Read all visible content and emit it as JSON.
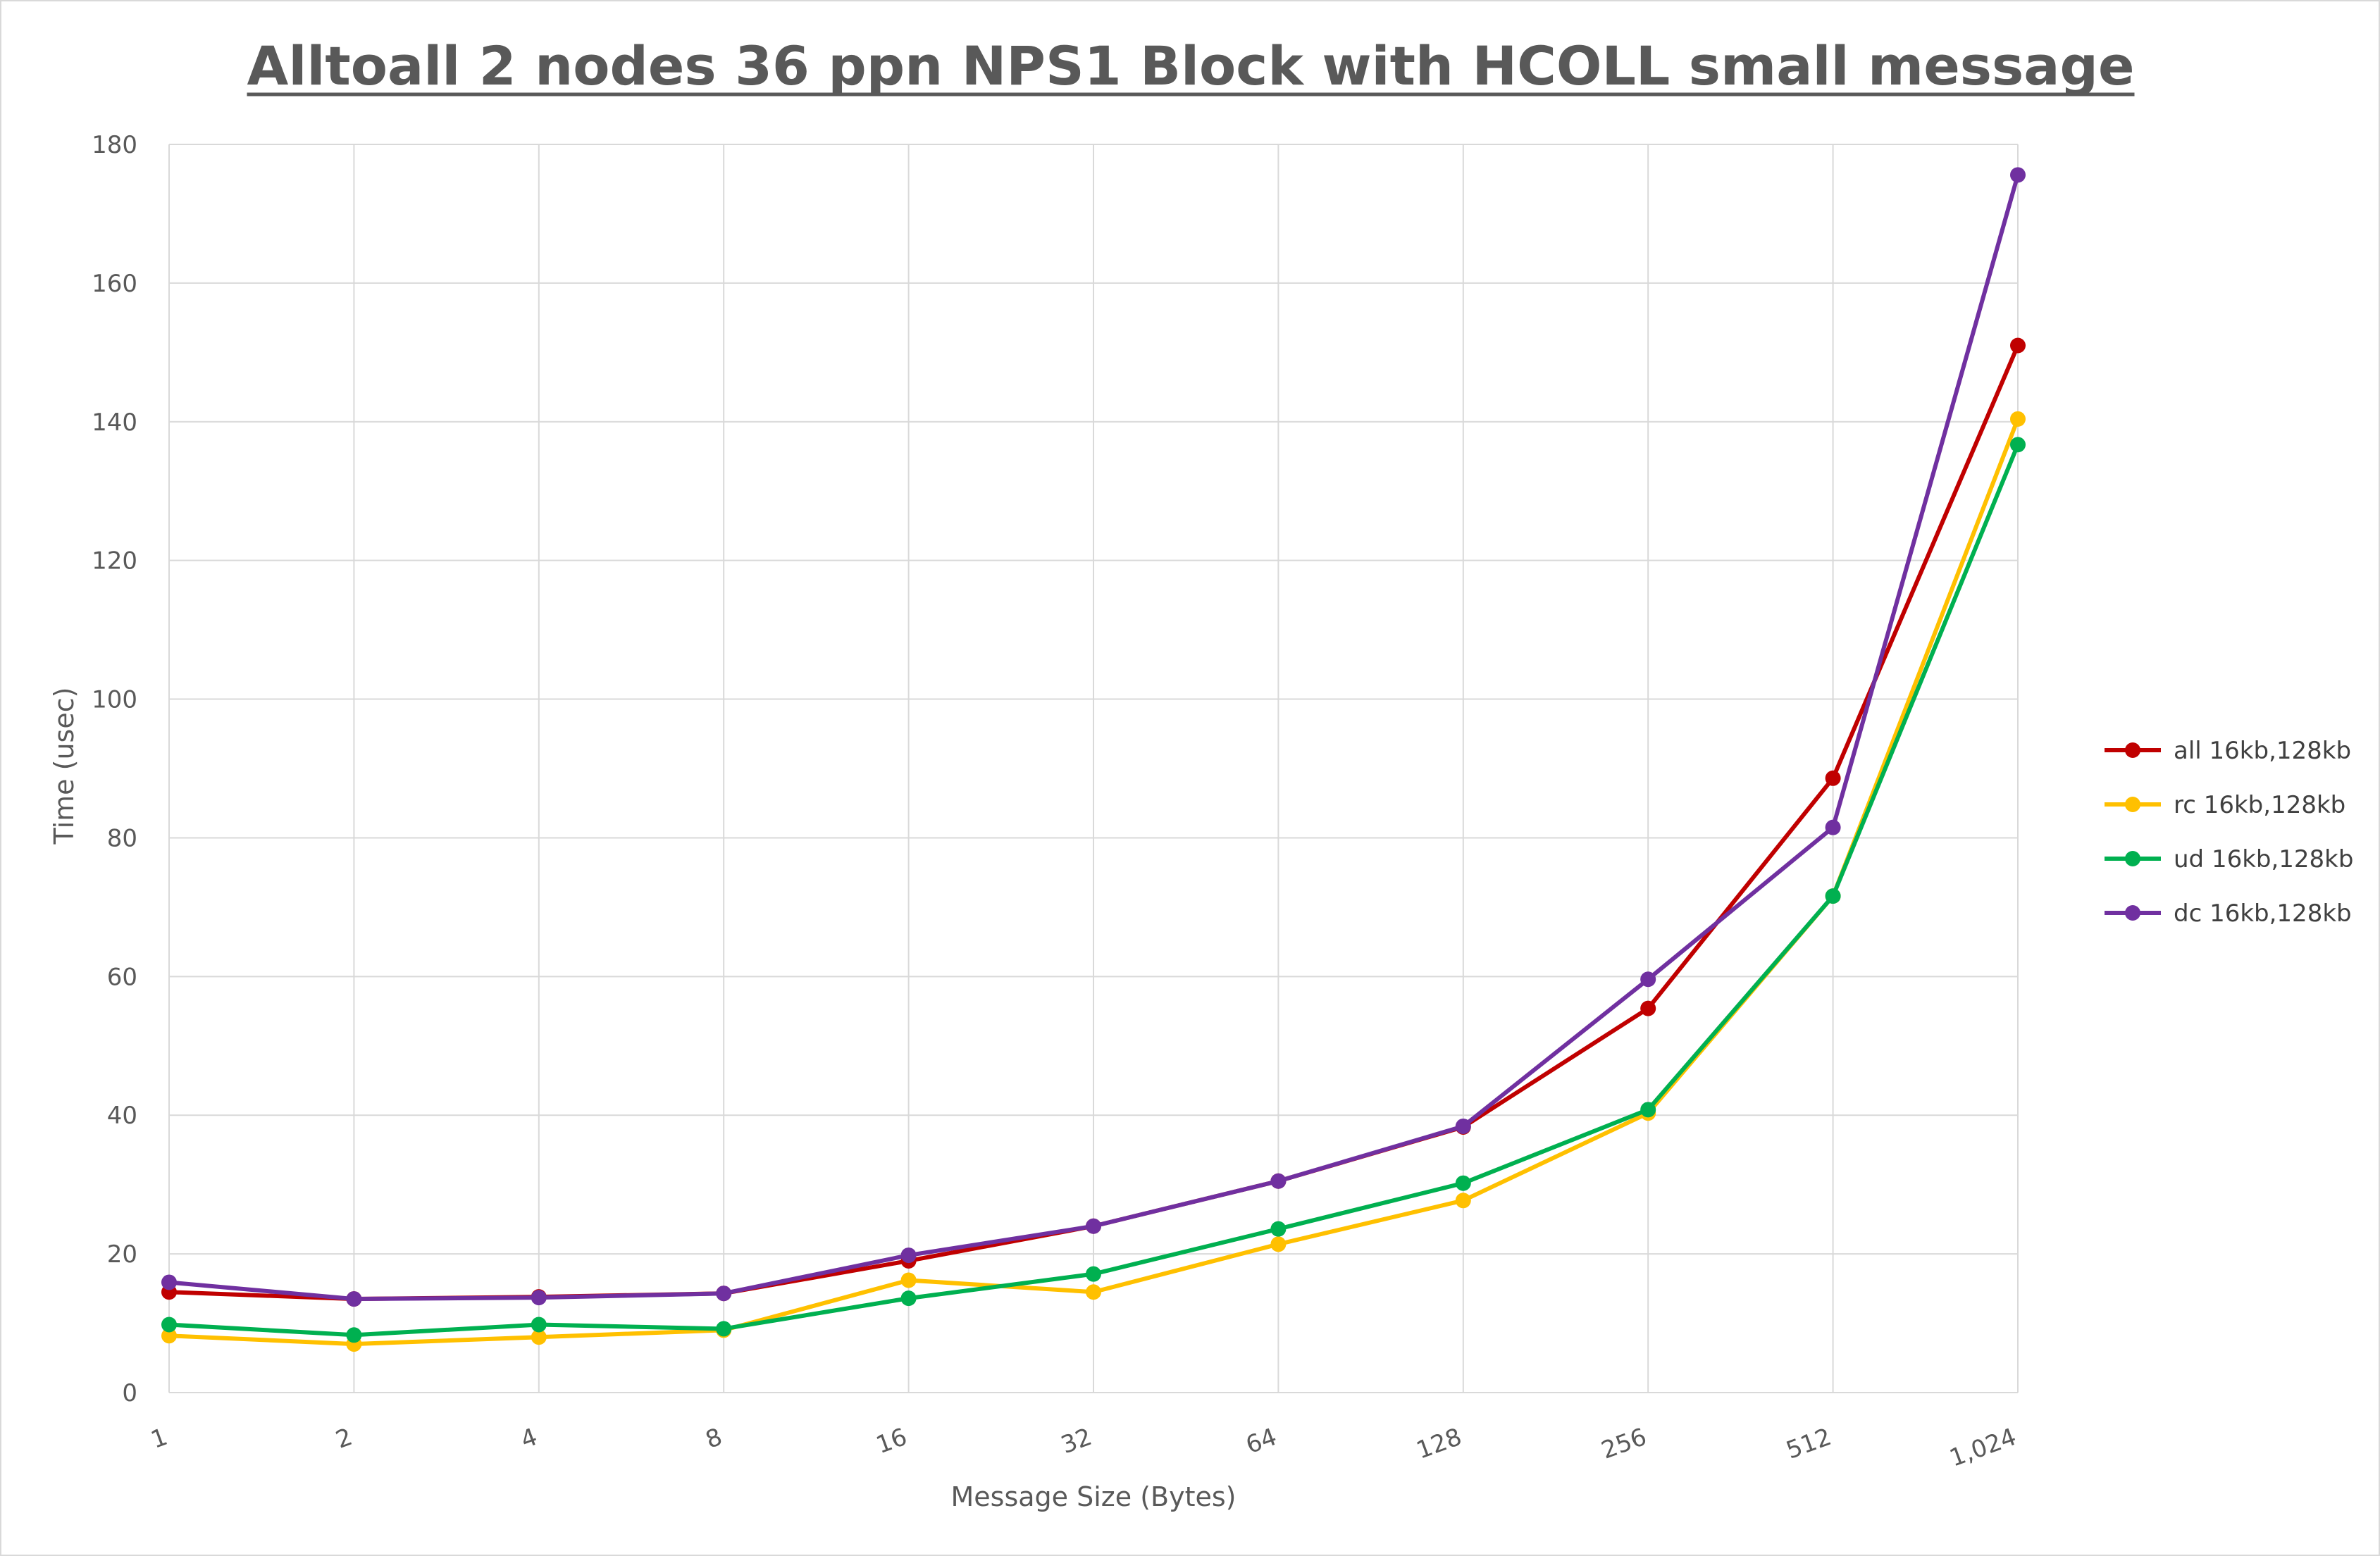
{
  "chart_data": {
    "type": "line",
    "title": "Alltoall 2 nodes 36 ppn NPS1 Block with HCOLL small message",
    "xlabel": "Message Size (Bytes)",
    "ylabel": "Time (usec)",
    "categories": [
      "1",
      "2",
      "4",
      "8",
      "16",
      "32",
      "64",
      "128",
      "256",
      "512",
      "1,024"
    ],
    "ylim": [
      0,
      180
    ],
    "yticks": [
      "0",
      "20",
      "40",
      "60",
      "80",
      "100",
      "120",
      "140",
      "160",
      "180"
    ],
    "grid": true,
    "legend_position": "right",
    "series": [
      {
        "name": "all 16kb,128kb",
        "color": "#c00000",
        "values": [
          14.5,
          13.5,
          13.8,
          14.3,
          19.0,
          24.0,
          30.5,
          38.3,
          55.4,
          88.6,
          151.0
        ]
      },
      {
        "name": "rc 16kb,128kb",
        "color": "#ffc000",
        "values": [
          8.2,
          7.0,
          8.0,
          9.0,
          16.2,
          14.5,
          21.4,
          27.7,
          40.3,
          71.6,
          140.4
        ]
      },
      {
        "name": "ud 16kb,128kb",
        "color": "#00b050",
        "values": [
          9.8,
          8.3,
          9.8,
          9.2,
          13.6,
          17.1,
          23.6,
          30.2,
          40.8,
          71.6,
          136.7
        ]
      },
      {
        "name": "dc 16kb,128kb",
        "color": "#7030a0",
        "values": [
          15.9,
          13.5,
          13.7,
          14.3,
          19.8,
          24.0,
          30.5,
          38.4,
          59.6,
          81.5,
          175.6
        ]
      }
    ]
  }
}
